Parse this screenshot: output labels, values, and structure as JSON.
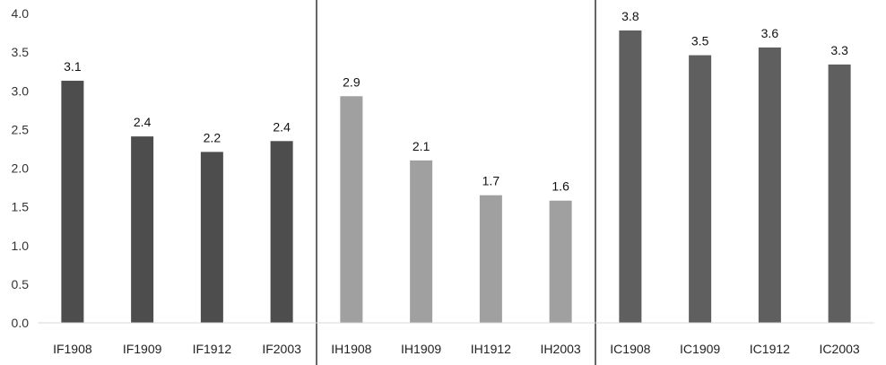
{
  "chart_data": {
    "type": "bar",
    "categories": [
      "IF1908",
      "IF1909",
      "IF1912",
      "IF2003",
      "IH1908",
      "IH1909",
      "IH1912",
      "IH2003",
      "IC1908",
      "IC1909",
      "IC1912",
      "IC2003"
    ],
    "values": [
      3.13,
      2.41,
      2.21,
      2.35,
      2.93,
      2.1,
      1.65,
      1.58,
      3.78,
      3.46,
      3.56,
      3.34
    ],
    "data_labels": [
      "3.1",
      "2.4",
      "2.2",
      "2.4",
      "2.9",
      "2.1",
      "1.7",
      "1.6",
      "3.8",
      "3.5",
      "3.6",
      "3.3"
    ],
    "groups": [
      {
        "categories": [
          "IF1908",
          "IF1909",
          "IF1912",
          "IF2003"
        ],
        "color": "#4d4d4d"
      },
      {
        "categories": [
          "IH1908",
          "IH1909",
          "IH1912",
          "IH2003"
        ],
        "color": "#a0a0a0"
      },
      {
        "categories": [
          "IC1908",
          "IC1909",
          "IC1912",
          "IC2003"
        ],
        "color": "#5f5f5f"
      }
    ],
    "y_ticks": [
      "0.0",
      "0.5",
      "1.0",
      "1.5",
      "2.0",
      "2.5",
      "3.0",
      "3.5",
      "4.0"
    ],
    "ylim": [
      0,
      4.0
    ],
    "title": "",
    "xlabel": "",
    "ylabel": "",
    "grid": false,
    "legend": "none",
    "group_separators": true
  }
}
